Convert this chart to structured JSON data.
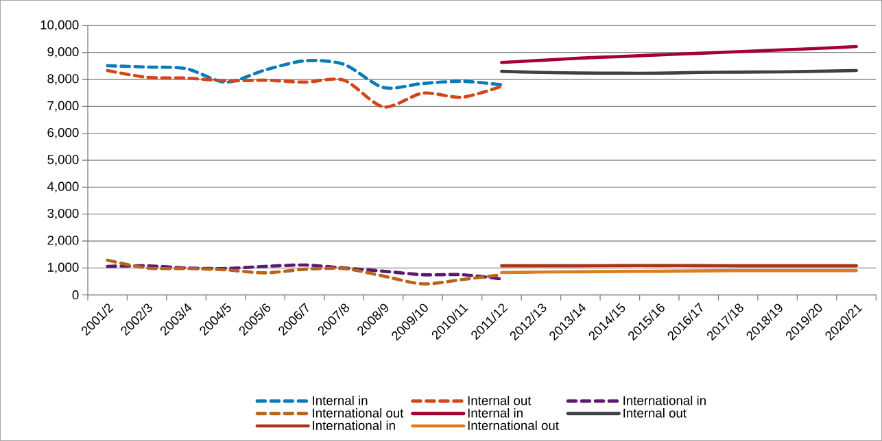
{
  "chart_data": {
    "type": "line",
    "categories": [
      "2001/2",
      "2002/3",
      "2003/4",
      "2004/5",
      "2005/6",
      "2006/7",
      "2007/8",
      "2008/9",
      "2009/10",
      "2010/11",
      "2011/12",
      "2012/13",
      "2013/14",
      "2014/15",
      "2015/16",
      "2016/17",
      "2017/18",
      "2018/19",
      "2019/20",
      "2020/21"
    ],
    "series": [
      {
        "name": "Internal in",
        "color": "#0a7bb8",
        "line_style": "dashed",
        "values": [
          8510,
          8460,
          8400,
          7900,
          8350,
          8690,
          8560,
          7700,
          7850,
          7930,
          7800,
          null,
          null,
          null,
          null,
          null,
          null,
          null,
          null,
          null
        ]
      },
      {
        "name": "Internal out",
        "color": "#d2461c",
        "line_style": "dashed",
        "values": [
          8330,
          8080,
          8050,
          7950,
          7970,
          7900,
          7970,
          6980,
          7490,
          7340,
          7750,
          null,
          null,
          null,
          null,
          null,
          null,
          null,
          null,
          null
        ]
      },
      {
        "name": "International in",
        "color": "#5c1a6e",
        "line_style": "dashed",
        "values": [
          1060,
          1080,
          1000,
          980,
          1060,
          1110,
          1000,
          880,
          750,
          750,
          590,
          null,
          null,
          null,
          null,
          null,
          null,
          null,
          null,
          null
        ]
      },
      {
        "name": "International out",
        "color": "#b8651a",
        "line_style": "dashed",
        "values": [
          1290,
          1000,
          980,
          930,
          820,
          950,
          980,
          700,
          410,
          570,
          750,
          null,
          null,
          null,
          null,
          null,
          null,
          null,
          null,
          null
        ]
      },
      {
        "name": "Internal in",
        "color": "#a50034",
        "line_style": "solid",
        "values": [
          null,
          null,
          null,
          null,
          null,
          null,
          null,
          null,
          null,
          null,
          8630,
          8710,
          8790,
          8850,
          8910,
          8970,
          9030,
          9090,
          9150,
          9220
        ]
      },
      {
        "name": "Internal out",
        "color": "#3d4144",
        "line_style": "solid",
        "values": [
          null,
          null,
          null,
          null,
          null,
          null,
          null,
          null,
          null,
          null,
          8300,
          8260,
          8240,
          8230,
          8230,
          8260,
          8270,
          8280,
          8300,
          8330
        ]
      },
      {
        "name": "International in",
        "color": "#a8341a",
        "line_style": "solid",
        "values": [
          null,
          null,
          null,
          null,
          null,
          null,
          null,
          null,
          null,
          null,
          1080,
          1080,
          1080,
          1090,
          1090,
          1090,
          1080,
          1080,
          1080,
          1080
        ]
      },
      {
        "name": "International out",
        "color": "#e07b20",
        "line_style": "solid",
        "values": [
          null,
          null,
          null,
          null,
          null,
          null,
          null,
          null,
          null,
          null,
          830,
          850,
          860,
          870,
          880,
          890,
          900,
          900,
          900,
          900
        ]
      }
    ],
    "ylim": [
      0,
      10000
    ],
    "yticks": [
      0,
      {
        "value": 1000,
        "label": "1,000"
      },
      {
        "value": 2000,
        "label": "2,000"
      },
      {
        "value": 3000,
        "label": "3,000"
      },
      {
        "value": 4000,
        "label": "4,000"
      },
      {
        "value": 5000,
        "label": "5,000"
      },
      {
        "value": 6000,
        "label": "6,000"
      },
      {
        "value": 7000,
        "label": "7,000"
      },
      {
        "value": 8000,
        "label": "8,000"
      },
      {
        "value": 9000,
        "label": "9,000"
      },
      {
        "value": 10000,
        "label": "10,000"
      }
    ],
    "grid": "y",
    "legend": "bottom",
    "marker": "none"
  }
}
